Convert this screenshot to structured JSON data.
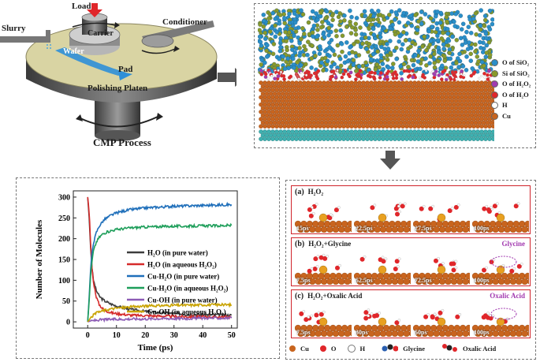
{
  "cmp": {
    "title": "CMP Process",
    "load": "Load",
    "slurry": "Slurry",
    "carrier": "Carrier",
    "conditioner": "Conditioner",
    "wafer": "Wafer",
    "pad": "Pad",
    "platen": "Polishing Platen"
  },
  "md_legend": {
    "items": [
      {
        "label": "O of SiO₂",
        "color": "#2a8fc9"
      },
      {
        "label": "Si of SiO₂",
        "color": "#8a9a2a"
      },
      {
        "label": "O of H₂O₂",
        "color": "#a23ab0"
      },
      {
        "label": "O of H₂O",
        "color": "#e0262a"
      },
      {
        "label": "H",
        "color": "#ffffff"
      },
      {
        "label": "Cu",
        "color": "#c8641e"
      }
    ]
  },
  "panels": [
    {
      "tag": "(a)",
      "title": "H₂O₂",
      "times": [
        "15ps",
        "22.5ps",
        "27.5ps",
        "100ps"
      ],
      "annotation": ""
    },
    {
      "tag": "(b)",
      "title": "H₂O₂+Glycine",
      "times": [
        "7.5ps",
        "52.5ps",
        "72.5ps",
        "100ps"
      ],
      "annotation": "Glycine"
    },
    {
      "tag": "(c)",
      "title": "H₂O₂+Oxalic Acid",
      "times": [
        "7.5ps",
        "30ps",
        "50ps",
        "100ps"
      ],
      "annotation": "Oxalic Acid"
    }
  ],
  "bottom_legend": {
    "cu": "Cu",
    "o": "O",
    "h": "H",
    "glycine": "Glycine",
    "oxalic": "Oxalic Acid"
  },
  "chart_data": {
    "type": "line",
    "xlabel": "Time (ps)",
    "ylabel": "Number of Molecules",
    "xlim": [
      -5,
      52
    ],
    "ylim": [
      -15,
      315
    ],
    "xticks": [
      0,
      10,
      20,
      30,
      40,
      50
    ],
    "yticks": [
      0,
      50,
      100,
      150,
      200,
      250,
      300
    ],
    "series": [
      {
        "name": "H₂O (in pure water)",
        "color": "#3d3d3d",
        "x": [
          0,
          0.5,
          1,
          1.5,
          2,
          3,
          4,
          5,
          6,
          8,
          10,
          12,
          15,
          20,
          25,
          30,
          35,
          40,
          45,
          50
        ],
        "values": [
          300,
          250,
          180,
          130,
          100,
          75,
          62,
          55,
          50,
          43,
          38,
          34,
          30,
          25,
          22,
          20,
          18,
          17,
          17,
          16
        ]
      },
      {
        "name": "H₂O (in aqueous H₂O₂)",
        "color": "#d62a2a",
        "x": [
          0,
          0.3,
          0.7,
          1,
          1.5,
          2,
          3,
          4,
          5,
          6,
          8,
          10,
          15,
          20,
          30,
          40,
          50
        ],
        "values": [
          300,
          280,
          240,
          190,
          130,
          95,
          60,
          42,
          33,
          28,
          22,
          20,
          16,
          15,
          13,
          12,
          12
        ]
      },
      {
        "name": "Cu-H₂O (in pure water)",
        "color": "#1f6fba",
        "x": [
          0,
          0.5,
          1,
          1.5,
          2,
          3,
          4,
          5,
          6,
          8,
          10,
          12,
          15,
          20,
          25,
          30,
          35,
          40,
          45,
          50
        ],
        "values": [
          0,
          60,
          125,
          165,
          190,
          215,
          230,
          240,
          247,
          256,
          262,
          266,
          270,
          274,
          276,
          278,
          279,
          280,
          281,
          282
        ]
      },
      {
        "name": "Cu-H₂O (in aqueous H₂O₂)",
        "color": "#1e9e5a",
        "x": [
          0,
          0.5,
          1,
          1.5,
          2,
          3,
          4,
          5,
          6,
          8,
          10,
          12,
          15,
          20,
          25,
          30,
          35,
          40,
          45,
          50
        ],
        "values": [
          0,
          50,
          110,
          145,
          170,
          192,
          203,
          210,
          214,
          219,
          222,
          224,
          226,
          228,
          229,
          230,
          230,
          231,
          231,
          232
        ]
      },
      {
        "name": "Cu-OH (in pure water)",
        "color": "#8c5bb5",
        "x": [
          0,
          1,
          2,
          3,
          5,
          8,
          10,
          15,
          20,
          25,
          30,
          35,
          40,
          45,
          50
        ],
        "values": [
          0,
          2,
          3,
          4,
          5,
          6,
          6,
          7,
          7,
          8,
          8,
          8,
          9,
          9,
          9
        ]
      },
      {
        "name": "Cu-OH (in aqueous H₂O₂)",
        "color": "#c9a300",
        "x": [
          0,
          0.5,
          1,
          2,
          3,
          4,
          5,
          6,
          8,
          10,
          15,
          20,
          25,
          30,
          35,
          40,
          45,
          50
        ],
        "values": [
          0,
          4,
          10,
          16,
          21,
          24,
          26,
          28,
          31,
          33,
          36,
          38,
          39,
          40,
          40,
          41,
          41,
          41
        ]
      }
    ]
  }
}
